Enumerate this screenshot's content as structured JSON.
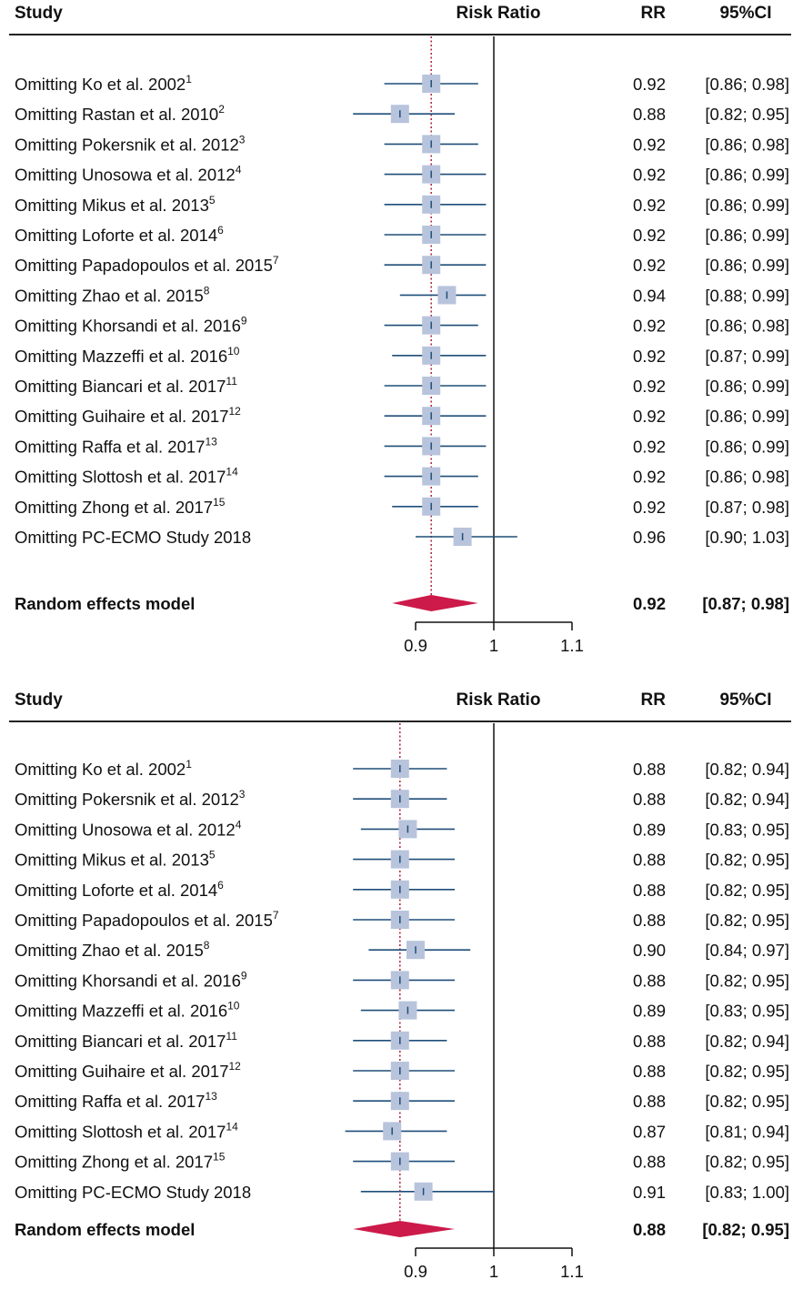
{
  "chart_data": [
    {
      "type": "forest",
      "headers": {
        "study": "Study",
        "plot": "Risk Ratio",
        "rr": "RR",
        "ci": "95%CI"
      },
      "xlim": [
        0.8,
        1.1
      ],
      "xticks": [
        {
          "value": 0.9,
          "label": "0.9"
        },
        {
          "value": 1,
          "label": "1"
        },
        {
          "value": 1.1,
          "label": "1.1"
        }
      ],
      "reference_line": 1,
      "pooled_line": 0.92,
      "studies": [
        {
          "label": "Omitting Ko et al. 2002",
          "sup": "1",
          "rr": 0.92,
          "lower": 0.86,
          "upper": 0.98,
          "rr_text": "0.92",
          "ci_text": "[0.86; 0.98]"
        },
        {
          "label": "Omitting Rastan et al. 2010",
          "sup": "2",
          "rr": 0.88,
          "lower": 0.82,
          "upper": 0.95,
          "rr_text": "0.88",
          "ci_text": "[0.82; 0.95]"
        },
        {
          "label": "Omitting Pokersnik et al. 2012",
          "sup": "3",
          "rr": 0.92,
          "lower": 0.86,
          "upper": 0.98,
          "rr_text": "0.92",
          "ci_text": "[0.86; 0.98]"
        },
        {
          "label": "Omitting Unosowa et al. 2012",
          "sup": "4",
          "rr": 0.92,
          "lower": 0.86,
          "upper": 0.99,
          "rr_text": "0.92",
          "ci_text": "[0.86; 0.99]"
        },
        {
          "label": "Omitting Mikus et al. 2013",
          "sup": "5",
          "rr": 0.92,
          "lower": 0.86,
          "upper": 0.99,
          "rr_text": "0.92",
          "ci_text": "[0.86; 0.99]"
        },
        {
          "label": "Omitting Loforte et al. 2014",
          "sup": "6",
          "rr": 0.92,
          "lower": 0.86,
          "upper": 0.99,
          "rr_text": "0.92",
          "ci_text": "[0.86; 0.99]"
        },
        {
          "label": "Omitting Papadopoulos et al. 2015",
          "sup": "7",
          "rr": 0.92,
          "lower": 0.86,
          "upper": 0.99,
          "rr_text": "0.92",
          "ci_text": "[0.86; 0.99]"
        },
        {
          "label": "Omitting Zhao et al. 2015",
          "sup": "8",
          "rr": 0.94,
          "lower": 0.88,
          "upper": 0.99,
          "rr_text": "0.94",
          "ci_text": "[0.88; 0.99]"
        },
        {
          "label": "Omitting Khorsandi et al. 2016",
          "sup": "9",
          "rr": 0.92,
          "lower": 0.86,
          "upper": 0.98,
          "rr_text": "0.92",
          "ci_text": "[0.86; 0.98]"
        },
        {
          "label": "Omitting Mazzeffi et al. 2016",
          "sup": "10",
          "rr": 0.92,
          "lower": 0.87,
          "upper": 0.99,
          "rr_text": "0.92",
          "ci_text": "[0.87; 0.99]"
        },
        {
          "label": "Omitting Biancari et al. 2017",
          "sup": "11",
          "rr": 0.92,
          "lower": 0.86,
          "upper": 0.99,
          "rr_text": "0.92",
          "ci_text": "[0.86; 0.99]"
        },
        {
          "label": "Omitting Guihaire et al. 2017",
          "sup": "12",
          "rr": 0.92,
          "lower": 0.86,
          "upper": 0.99,
          "rr_text": "0.92",
          "ci_text": "[0.86; 0.99]"
        },
        {
          "label": "Omitting Raffa et al. 2017",
          "sup": "13",
          "rr": 0.92,
          "lower": 0.86,
          "upper": 0.99,
          "rr_text": "0.92",
          "ci_text": "[0.86; 0.99]"
        },
        {
          "label": "Omitting Slottosh et al. 2017",
          "sup": "14",
          "rr": 0.92,
          "lower": 0.86,
          "upper": 0.98,
          "rr_text": "0.92",
          "ci_text": "[0.86; 0.98]"
        },
        {
          "label": "Omitting Zhong et al. 2017",
          "sup": "15",
          "rr": 0.92,
          "lower": 0.87,
          "upper": 0.98,
          "rr_text": "0.92",
          "ci_text": "[0.87; 0.98]"
        },
        {
          "label": "Omitting PC-ECMO Study 2018",
          "sup": "",
          "rr": 0.96,
          "lower": 0.9,
          "upper": 1.03,
          "rr_text": "0.96",
          "ci_text": "[0.90; 1.03]"
        }
      ],
      "summary": {
        "label": "Random effects model",
        "rr": 0.92,
        "lower": 0.87,
        "upper": 0.98,
        "rr_text": "0.92",
        "ci_text": "[0.87; 0.98]"
      }
    },
    {
      "type": "forest",
      "headers": {
        "study": "Study",
        "plot": "Risk Ratio",
        "rr": "RR",
        "ci": "95%CI"
      },
      "xlim": [
        0.8,
        1.1
      ],
      "xticks": [
        {
          "value": 0.9,
          "label": "0.9"
        },
        {
          "value": 1,
          "label": "1"
        },
        {
          "value": 1.1,
          "label": "1.1"
        }
      ],
      "reference_line": 1,
      "pooled_line": 0.88,
      "studies": [
        {
          "label": "Omitting Ko et al. 2002",
          "sup": "1",
          "rr": 0.88,
          "lower": 0.82,
          "upper": 0.94,
          "rr_text": "0.88",
          "ci_text": "[0.82; 0.94]"
        },
        {
          "label": "Omitting Pokersnik et al. 2012",
          "sup": "3",
          "rr": 0.88,
          "lower": 0.82,
          "upper": 0.94,
          "rr_text": "0.88",
          "ci_text": "[0.82; 0.94]"
        },
        {
          "label": "Omitting Unosowa et al. 2012",
          "sup": "4",
          "rr": 0.89,
          "lower": 0.83,
          "upper": 0.95,
          "rr_text": "0.89",
          "ci_text": "[0.83; 0.95]"
        },
        {
          "label": "Omitting Mikus et al. 2013",
          "sup": "5",
          "rr": 0.88,
          "lower": 0.82,
          "upper": 0.95,
          "rr_text": "0.88",
          "ci_text": "[0.82; 0.95]"
        },
        {
          "label": "Omitting Loforte et al. 2014",
          "sup": "6",
          "rr": 0.88,
          "lower": 0.82,
          "upper": 0.95,
          "rr_text": "0.88",
          "ci_text": "[0.82; 0.95]"
        },
        {
          "label": "Omitting Papadopoulos et al. 2015",
          "sup": "7",
          "rr": 0.88,
          "lower": 0.82,
          "upper": 0.95,
          "rr_text": "0.88",
          "ci_text": "[0.82; 0.95]"
        },
        {
          "label": "Omitting Zhao et al. 2015",
          "sup": "8",
          "rr": 0.9,
          "lower": 0.84,
          "upper": 0.97,
          "rr_text": "0.90",
          "ci_text": "[0.84; 0.97]"
        },
        {
          "label": "Omitting Khorsandi et al. 2016",
          "sup": "9",
          "rr": 0.88,
          "lower": 0.82,
          "upper": 0.95,
          "rr_text": "0.88",
          "ci_text": "[0.82; 0.95]"
        },
        {
          "label": "Omitting Mazzeffi et al. 2016",
          "sup": "10",
          "rr": 0.89,
          "lower": 0.83,
          "upper": 0.95,
          "rr_text": "0.89",
          "ci_text": "[0.83; 0.95]"
        },
        {
          "label": "Omitting Biancari et al. 2017",
          "sup": "11",
          "rr": 0.88,
          "lower": 0.82,
          "upper": 0.94,
          "rr_text": "0.88",
          "ci_text": "[0.82; 0.94]"
        },
        {
          "label": "Omitting Guihaire et al. 2017",
          "sup": "12",
          "rr": 0.88,
          "lower": 0.82,
          "upper": 0.95,
          "rr_text": "0.88",
          "ci_text": "[0.82; 0.95]"
        },
        {
          "label": "Omitting Raffa et al. 2017",
          "sup": "13",
          "rr": 0.88,
          "lower": 0.82,
          "upper": 0.95,
          "rr_text": "0.88",
          "ci_text": "[0.82; 0.95]"
        },
        {
          "label": "Omitting Slottosh et al. 2017",
          "sup": "14",
          "rr": 0.87,
          "lower": 0.81,
          "upper": 0.94,
          "rr_text": "0.87",
          "ci_text": "[0.81; 0.94]"
        },
        {
          "label": "Omitting Zhong et al. 2017",
          "sup": "15",
          "rr": 0.88,
          "lower": 0.82,
          "upper": 0.95,
          "rr_text": "0.88",
          "ci_text": "[0.82; 0.95]"
        },
        {
          "label": "Omitting PC-ECMO Study 2018",
          "sup": "",
          "rr": 0.91,
          "lower": 0.83,
          "upper": 1.0,
          "rr_text": "0.91",
          "ci_text": "[0.83; 1.00]"
        }
      ],
      "summary": {
        "label": "Random effects model",
        "rr": 0.88,
        "lower": 0.82,
        "upper": 0.95,
        "rr_text": "0.88",
        "ci_text": "[0.82; 0.95]"
      }
    }
  ],
  "colors": {
    "ci_line": "#1f4e79",
    "square": "#b8c4dc",
    "diamond": "#cc1a4a",
    "pooled_line": "#b0203a",
    "axis": "#111111",
    "text": "#111111"
  }
}
